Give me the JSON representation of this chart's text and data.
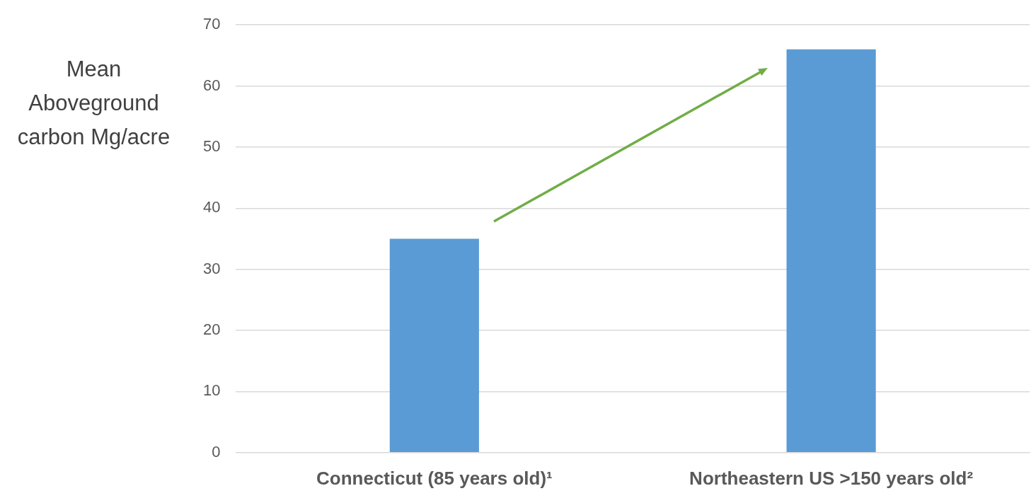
{
  "chart_data": {
    "type": "bar",
    "ylabel": "Mean Aboveground carbon Mg/acre",
    "categories": [
      "Connecticut (85 years old)¹",
      "Northeastern US >150 years old²"
    ],
    "values": [
      35,
      66
    ],
    "color": "#5b9bd5",
    "ylim": [
      0,
      70
    ],
    "yticks": [
      0,
      10,
      20,
      30,
      40,
      50,
      60,
      70
    ],
    "grid": "y",
    "legend": false
  }
}
